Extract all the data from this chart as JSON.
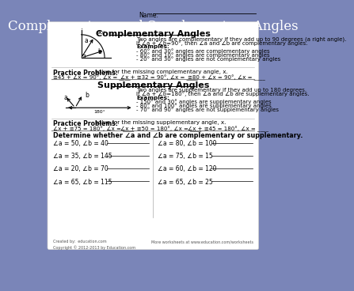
{
  "page_bg": "#7a85b8",
  "content_bg": "#ffffff",
  "title": "Complementary and Supplementary Angles",
  "title_color": "#ffffff",
  "title_fontsize": 12,
  "name_label": "Name:",
  "comp_section_title": "Complementary Angles",
  "supp_section_title": "Supplementary Angles",
  "comp_def_line1": "Two angles are complementary if they add up to 90 degrees (a right angle).",
  "comp_def_line2": "If ∠a + ∠b=90°, then ∠a and ∠b are complementary angles.",
  "comp_examples_title": "Examples:",
  "comp_examples": [
    "- 60° and 30° angles are complementary angles",
    "- 80° and 10° angles are complementary angles",
    "- 20° and 30° angles are not complementary angles"
  ],
  "comp_practice_label": "Practice Problems:",
  "comp_practice_text": " solve for the missing complementary angle, x.",
  "comp_problems": [
    "≅45 + ∠x = 90°, ∠x = ____",
    "∠x + ≅32 = 90°, ∠x = ____",
    "≅80 + ∠x = 90°, ∠x = ____"
  ],
  "supp_def_line1": "Two angles are supplementary if they add up to 180 degrees.",
  "supp_def_line2": "If ∠a + ∠b=180°, then ∠a and ∠b are supplementary angles.",
  "supp_examples_title": "Examples:",
  "supp_examples": [
    "- 150° and 30° angles are supplementary angles",
    "- 80° and 100° angles are supplementary angles",
    "- 70° and 90° angles are not supplementary angles"
  ],
  "supp_practice_label": "Practice Problems:",
  "supp_practice_text": " solve for the missing supplementary angle, x.",
  "supp_problems": [
    "∠x + ≅75 = 180°, ∠x = ____",
    "∠x + ≅50 = 180°, ∠x = ____",
    "∠x + ≅45 = 180°, ∠x = ____"
  ],
  "determine_label": "Determine whether ∠a and ∠b are complementary or supplementary.",
  "det_problems_left": [
    "∠a = 50, ∠b = 40",
    "∠a = 35, ∠b = 145",
    "∠a = 20, ∠b = 70",
    "∠a = 65, ∠b = 115"
  ],
  "det_problems_right": [
    "∠a = 80, ∠b = 100",
    "∠a = 75, ∠b = 15",
    "∠a = 60, ∠b = 120",
    "∠a = 65, ∠b = 25"
  ],
  "footer_left": "Created by:  education.com\nCopyright © 2012-2013 by Education.com",
  "footer_right": "More worksheets at www.education.com/worksheets"
}
